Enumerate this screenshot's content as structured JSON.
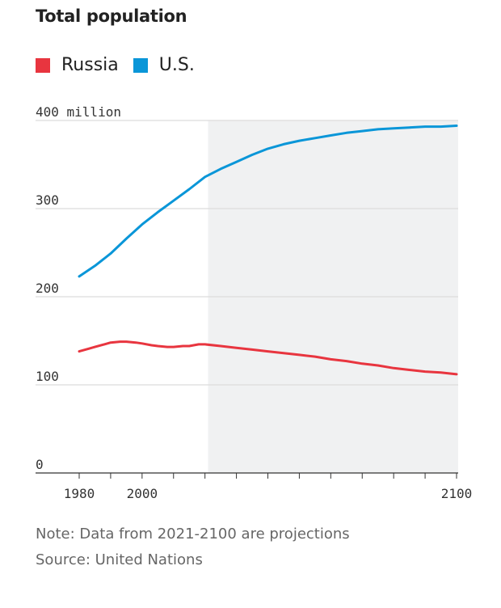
{
  "title": "Total population",
  "note": "Note: Data from 2021-2100 are projections",
  "source": "Source: United Nations",
  "colors": {
    "russia": "#e8353f",
    "us": "#0a96d8",
    "projection_band": "#f0f1f2",
    "grid": "#dcdcdc",
    "axis": "#333333"
  },
  "chart_data": {
    "type": "line",
    "ylim": [
      0,
      400
    ],
    "xlim": [
      1980,
      2100
    ],
    "y_ticks": [
      {
        "value": 400,
        "label": "400 million"
      },
      {
        "value": 300,
        "label": "300"
      },
      {
        "value": 200,
        "label": "200"
      },
      {
        "value": 100,
        "label": "100"
      },
      {
        "value": 0,
        "label": "0"
      }
    ],
    "x_ticks": [
      {
        "value": 1980,
        "label": "1980"
      },
      {
        "value": 2000,
        "label": "2000"
      },
      {
        "value": 2100,
        "label": "2100"
      }
    ],
    "x_minor_ticks": [
      1980,
      1990,
      2000,
      2010,
      2020,
      2030,
      2040,
      2050,
      2060,
      2070,
      2080,
      2090,
      2100
    ],
    "projection_start": 2021,
    "legend_position": "top-left",
    "series": [
      {
        "name": "Russia",
        "color": "#e8353f",
        "x": [
          1980,
          1983,
          1985,
          1988,
          1990,
          1993,
          1995,
          1998,
          2000,
          2003,
          2005,
          2008,
          2010,
          2013,
          2015,
          2018,
          2020,
          2025,
          2030,
          2035,
          2040,
          2045,
          2050,
          2055,
          2060,
          2065,
          2070,
          2075,
          2080,
          2085,
          2090,
          2095,
          2100
        ],
        "values": [
          138,
          141,
          143,
          146,
          148,
          149,
          149,
          148,
          147,
          145,
          144,
          143,
          143,
          144,
          144,
          146,
          146,
          144,
          142,
          140,
          138,
          136,
          134,
          132,
          129,
          127,
          124,
          122,
          119,
          117,
          115,
          114,
          112
        ]
      },
      {
        "name": "U.S.",
        "color": "#0a96d8",
        "x": [
          1980,
          1985,
          1990,
          1995,
          2000,
          2005,
          2010,
          2015,
          2020,
          2025,
          2030,
          2035,
          2040,
          2045,
          2050,
          2055,
          2060,
          2065,
          2070,
          2075,
          2080,
          2085,
          2090,
          2095,
          2100
        ],
        "values": [
          223,
          235,
          249,
          266,
          282,
          296,
          309,
          322,
          336,
          345,
          353,
          361,
          368,
          373,
          377,
          380,
          383,
          386,
          388,
          390,
          391,
          392,
          393,
          393,
          394
        ]
      }
    ]
  }
}
